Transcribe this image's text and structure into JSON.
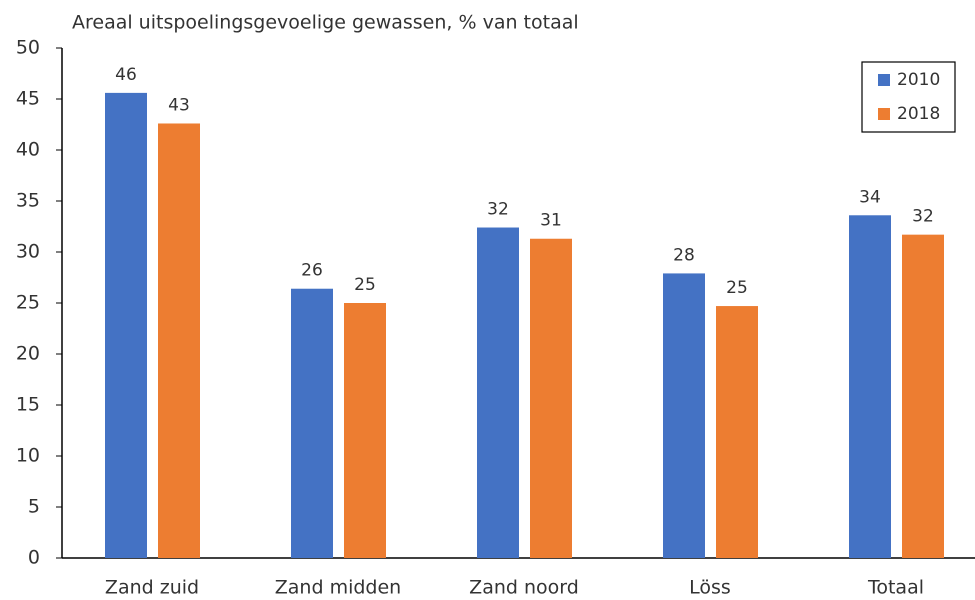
{
  "chart_data": {
    "type": "bar",
    "title": "Areaal uitspoelingsgevoelige gewassen, % van totaal",
    "categories": [
      "Zand zuid",
      "Zand midden",
      "Zand noord",
      "Löss",
      "Totaal"
    ],
    "series": [
      {
        "name": "2010",
        "color": "#4472c4",
        "values": [
          45.6,
          26.4,
          32.4,
          27.9,
          33.6
        ],
        "value_labels": [
          "46",
          "26",
          "32",
          "28",
          "34"
        ]
      },
      {
        "name": "2018",
        "color": "#ed7d31",
        "values": [
          42.6,
          25.0,
          31.3,
          24.7,
          31.7
        ],
        "value_labels": [
          "43",
          "25",
          "31",
          "25",
          "32"
        ]
      }
    ],
    "ylim": [
      0,
      50
    ],
    "yticks": [
      0,
      5,
      10,
      15,
      20,
      25,
      30,
      35,
      40,
      45,
      50
    ],
    "grid": false,
    "legend": "top-right"
  }
}
